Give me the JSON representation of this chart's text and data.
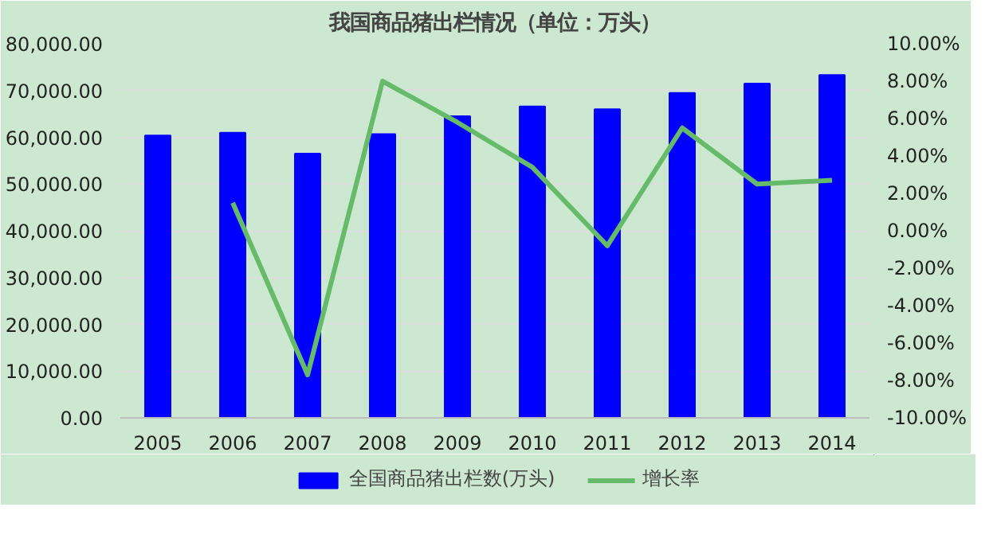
{
  "chart_data": {
    "type": "bar",
    "title": "我国商品猪出栏情况（单位：万头）",
    "categories": [
      "2005",
      "2006",
      "2007",
      "2008",
      "2009",
      "2010",
      "2011",
      "2012",
      "2013",
      "2014"
    ],
    "series": [
      {
        "name": "全国商品猪出栏数(万头)",
        "color": "#0000ff",
        "values": [
          60400,
          61000,
          56500,
          60700,
          64500,
          66600,
          66000,
          69500,
          71500,
          73300
        ]
      },
      {
        "name": "增长率",
        "color": "#66bb6a",
        "type": "line",
        "axis": "y2",
        "values": [
          null,
          1.5,
          -7.7,
          8.0,
          5.8,
          3.4,
          -0.8,
          5.5,
          2.5,
          2.7
        ]
      }
    ],
    "ylim": [
      0,
      80000
    ],
    "yticks": [
      {
        "value": 0,
        "label": "0.00"
      },
      {
        "value": 10000,
        "label": "10,000.00"
      },
      {
        "value": 20000,
        "label": "20,000.00"
      },
      {
        "value": 30000,
        "label": "30,000.00"
      },
      {
        "value": 40000,
        "label": "40,000.00"
      },
      {
        "value": 50000,
        "label": "50,000.00"
      },
      {
        "value": 60000,
        "label": "60,000.00"
      },
      {
        "value": 70000,
        "label": "70,000.00"
      },
      {
        "value": 80000,
        "label": "80,000.00"
      }
    ],
    "y2lim": [
      -10,
      10
    ],
    "y2ticks": [
      {
        "value": -10,
        "label": "-10.00%"
      },
      {
        "value": -8,
        "label": "-8.00%"
      },
      {
        "value": -6,
        "label": "-6.00%"
      },
      {
        "value": -4,
        "label": "-4.00%"
      },
      {
        "value": -2,
        "label": "-2.00%"
      },
      {
        "value": 0,
        "label": "0.00%"
      },
      {
        "value": 2,
        "label": "2.00%"
      },
      {
        "value": 4,
        "label": "4.00%"
      },
      {
        "value": 6,
        "label": "6.00%"
      },
      {
        "value": 8,
        "label": "8.00%"
      },
      {
        "value": 10,
        "label": "10.00%"
      }
    ],
    "grid": "y",
    "legend": "bottom"
  }
}
